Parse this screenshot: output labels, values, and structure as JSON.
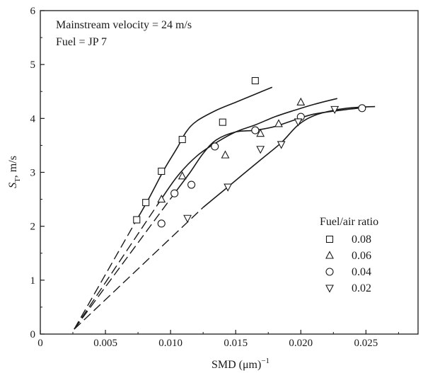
{
  "chart_data": {
    "type": "scatter",
    "title": "",
    "annotations": [
      "Mainstream velocity = 24 m/s",
      "Fuel = JP 7"
    ],
    "xlabel": "SMD (μm)",
    "xlabel_superscript": "−1",
    "ylabel_main": "S",
    "ylabel_subscript": "T",
    "ylabel_suffix": ", m/s",
    "xlim": [
      0,
      0.029
    ],
    "ylim": [
      0,
      6
    ],
    "xticks": [
      0,
      0.005,
      0.01,
      0.015,
      0.02,
      0.025
    ],
    "xtick_labels": [
      "0",
      "0.005",
      "0.010",
      "0.015",
      "0.020",
      "0.025"
    ],
    "yticks": [
      0,
      1,
      2,
      3,
      4,
      5,
      6
    ],
    "ytick_labels": [
      "0",
      "1",
      "2",
      "3",
      "4",
      "5",
      "6"
    ],
    "grid": false,
    "legend_title": "Fuel/air ratio",
    "legend_position": "lower-right",
    "series": [
      {
        "name": "0.08",
        "marker": "square",
        "points": [
          [
            0.0074,
            2.12
          ],
          [
            0.0081,
            2.44
          ],
          [
            0.0093,
            3.02
          ],
          [
            0.0109,
            3.61
          ],
          [
            0.014,
            3.93
          ],
          [
            0.0165,
            4.7
          ]
        ],
        "curve": [
          [
            0.0074,
            2.12
          ],
          [
            0.0083,
            2.5
          ],
          [
            0.0095,
            3.05
          ],
          [
            0.0105,
            3.45
          ],
          [
            0.0112,
            3.75
          ],
          [
            0.012,
            3.95
          ],
          [
            0.0135,
            4.15
          ],
          [
            0.015,
            4.3
          ],
          [
            0.0165,
            4.45
          ],
          [
            0.0178,
            4.58
          ]
        ],
        "extrapolation": [
          [
            0.0026,
            0.09
          ],
          [
            0.0074,
            2.12
          ]
        ]
      },
      {
        "name": "0.06",
        "marker": "triangle-up",
        "points": [
          [
            0.0093,
            2.5
          ],
          [
            0.0109,
            2.93
          ],
          [
            0.0142,
            3.32
          ],
          [
            0.0169,
            3.72
          ],
          [
            0.0183,
            3.9
          ],
          [
            0.02,
            4.3
          ]
        ],
        "curve": [
          [
            0.009,
            2.4
          ],
          [
            0.0105,
            2.92
          ],
          [
            0.012,
            3.3
          ],
          [
            0.0135,
            3.55
          ],
          [
            0.015,
            3.75
          ],
          [
            0.0165,
            3.88
          ],
          [
            0.018,
            4.03
          ],
          [
            0.0195,
            4.15
          ],
          [
            0.021,
            4.26
          ],
          [
            0.0228,
            4.37
          ]
        ],
        "extrapolation": [
          [
            0.0026,
            0.09
          ],
          [
            0.009,
            2.4
          ]
        ]
      },
      {
        "name": "0.04",
        "marker": "circle",
        "points": [
          [
            0.0093,
            2.05
          ],
          [
            0.0103,
            2.61
          ],
          [
            0.0116,
            2.77
          ],
          [
            0.0134,
            3.48
          ],
          [
            0.0165,
            3.78
          ],
          [
            0.02,
            4.03
          ],
          [
            0.0247,
            4.19
          ]
        ],
        "curve": [
          [
            0.0103,
            2.61
          ],
          [
            0.0115,
            3.0
          ],
          [
            0.0125,
            3.35
          ],
          [
            0.0135,
            3.6
          ],
          [
            0.015,
            3.75
          ],
          [
            0.0165,
            3.78
          ],
          [
            0.018,
            3.85
          ],
          [
            0.0195,
            3.97
          ],
          [
            0.021,
            4.08
          ],
          [
            0.023,
            4.15
          ],
          [
            0.0248,
            4.2
          ]
        ],
        "extrapolation": [
          [
            0.0026,
            0.09
          ],
          [
            0.0103,
            2.61
          ]
        ]
      },
      {
        "name": "0.02",
        "marker": "triangle-down",
        "points": [
          [
            0.0113,
            2.15
          ],
          [
            0.0144,
            2.73
          ],
          [
            0.0169,
            3.43
          ],
          [
            0.0185,
            3.52
          ],
          [
            0.0198,
            3.94
          ],
          [
            0.0226,
            4.17
          ]
        ],
        "curve": [
          [
            0.0125,
            2.35
          ],
          [
            0.014,
            2.65
          ],
          [
            0.0155,
            2.95
          ],
          [
            0.017,
            3.25
          ],
          [
            0.0185,
            3.55
          ],
          [
            0.0198,
            3.88
          ],
          [
            0.021,
            4.05
          ],
          [
            0.0225,
            4.15
          ],
          [
            0.024,
            4.2
          ],
          [
            0.0257,
            4.22
          ]
        ],
        "extrapolation": [
          [
            0.0026,
            0.09
          ],
          [
            0.0125,
            2.35
          ]
        ]
      }
    ]
  }
}
